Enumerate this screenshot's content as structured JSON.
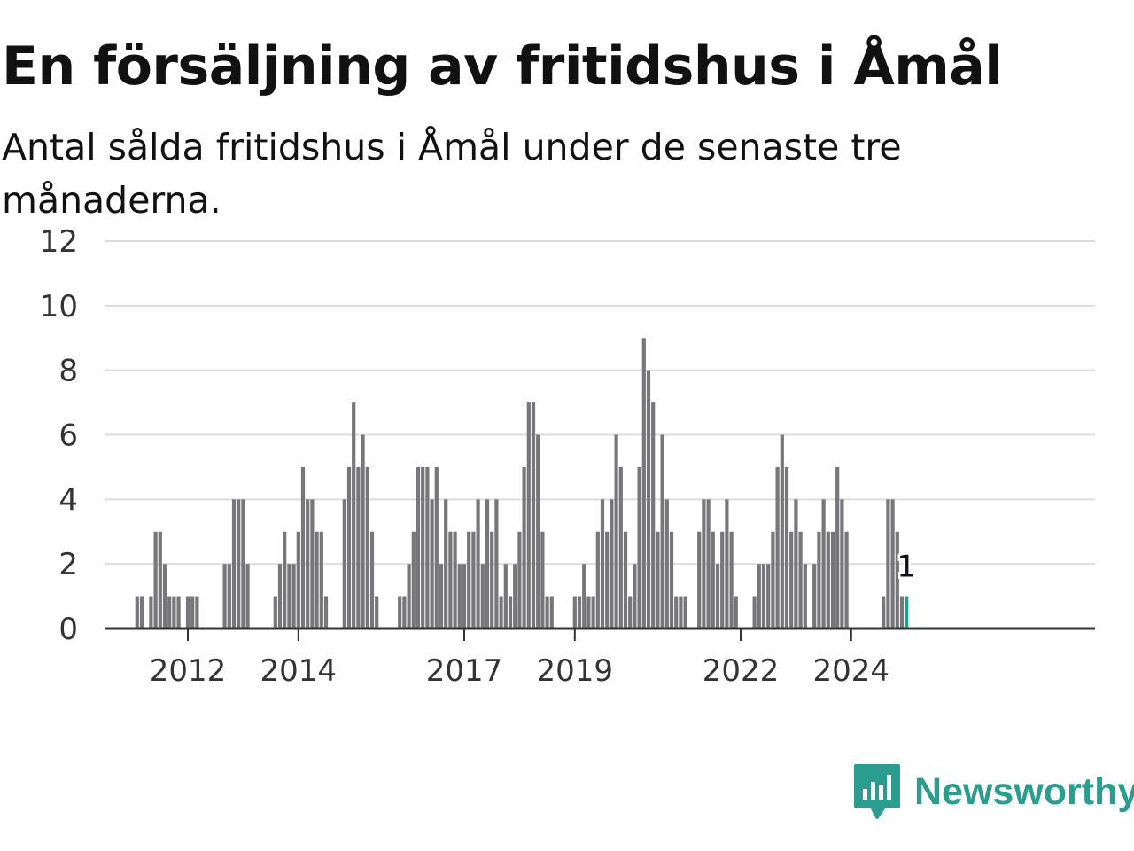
{
  "title": "En försäljning av fritidshus i Åmål",
  "subtitle": "Antal sålda fritidshus i Åmål under de senaste tre månaderna.",
  "brand": {
    "name": "Newsworthy",
    "icon": "newsworthy-logo-icon"
  },
  "colors": {
    "bar": "#77767b",
    "highlight": "#1f9e8f",
    "grid": "#dddddd",
    "axis": "#333333",
    "brand": "#2a9d8f"
  },
  "chart_data": {
    "type": "bar",
    "x_ticks": [
      "2012",
      "2014",
      "2017",
      "2019",
      "2022",
      "2024"
    ],
    "y_ticks": [
      "0",
      "2",
      "4",
      "6",
      "8",
      "10",
      "12"
    ],
    "ylim": [
      0,
      12
    ],
    "grid": true,
    "last_label": "1",
    "series": [
      {
        "values": [
          0,
          1,
          1,
          0,
          1,
          3,
          3,
          2,
          1,
          1,
          1,
          0,
          1,
          1,
          1,
          0,
          0,
          0,
          0,
          0,
          2,
          2,
          4,
          4,
          4,
          2,
          0,
          0,
          0,
          0,
          0,
          1,
          2,
          3,
          2,
          2,
          3,
          5,
          4,
          4,
          3,
          3,
          1,
          0,
          0,
          0,
          4,
          5,
          7,
          5,
          6,
          5,
          3,
          1,
          0,
          0,
          0,
          0,
          1,
          1,
          2,
          3,
          5,
          5,
          5,
          4,
          5,
          2,
          4,
          3,
          3,
          2,
          2,
          3,
          3,
          4,
          2,
          4,
          3,
          4,
          1,
          2,
          1,
          2,
          3,
          5,
          7,
          7,
          6,
          3,
          1,
          1,
          0,
          0,
          0,
          0,
          1,
          1,
          2,
          1,
          1,
          3,
          4,
          3,
          4,
          6,
          5,
          3,
          1,
          2,
          5,
          9,
          8,
          7,
          3,
          6,
          4,
          3,
          1,
          1,
          1,
          0,
          0,
          3,
          4,
          4,
          3,
          2,
          3,
          4,
          3,
          1,
          0,
          0,
          0,
          1,
          2,
          2,
          2,
          3,
          5,
          6,
          5,
          3,
          4,
          3,
          2,
          0,
          2,
          3,
          4,
          3,
          3,
          5,
          4,
          3,
          0,
          0,
          0,
          0,
          0,
          0,
          0,
          1,
          4,
          4,
          3,
          1,
          1
        ]
      }
    ]
  }
}
